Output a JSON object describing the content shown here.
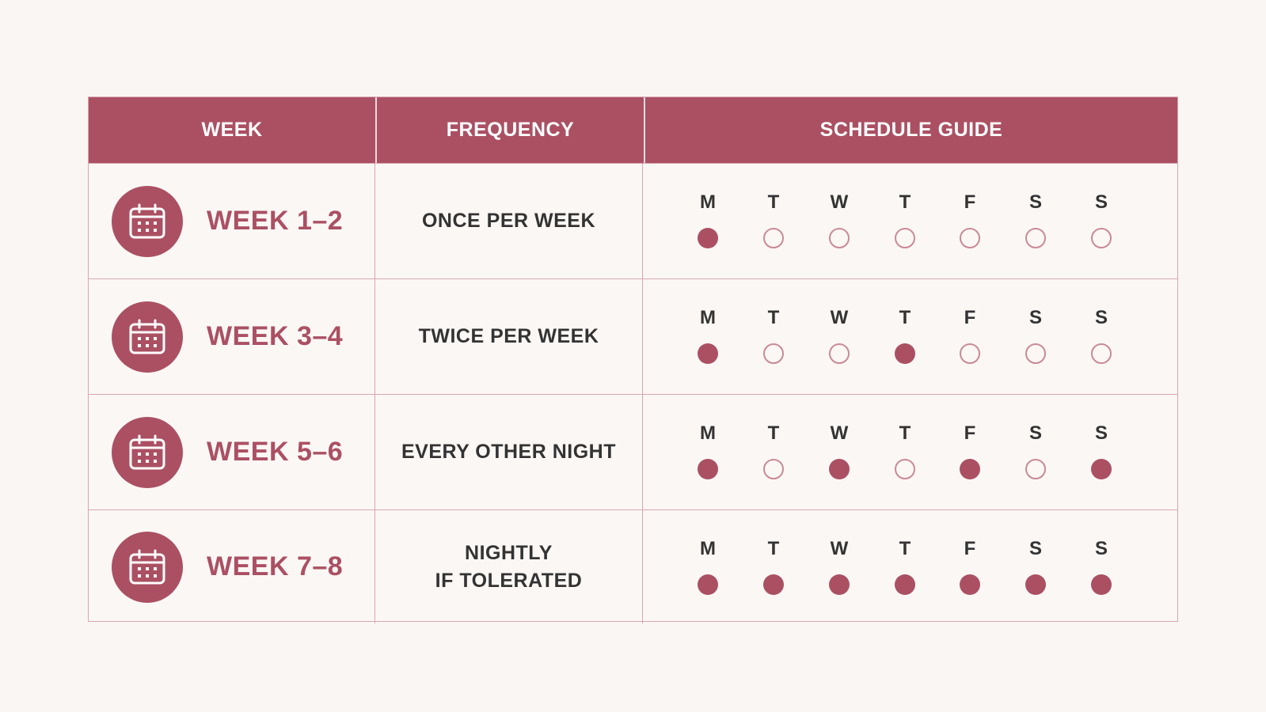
{
  "colors": {
    "accent": "#ab5063",
    "background": "#faf6f4",
    "text": "#333333"
  },
  "header": {
    "week": "WEEK",
    "frequency": "FREQUENCY",
    "schedule": "SCHEDULE GUIDE"
  },
  "day_letters": [
    "M",
    "T",
    "W",
    "T",
    "F",
    "S",
    "S"
  ],
  "rows": [
    {
      "icon": "calendar-icon",
      "week": "WEEK 1–2",
      "frequency": [
        "ONCE PER WEEK"
      ],
      "days": [
        1,
        0,
        0,
        0,
        0,
        0,
        0
      ]
    },
    {
      "icon": "calendar-icon",
      "week": "WEEK 3–4",
      "frequency": [
        "TWICE PER WEEK"
      ],
      "days": [
        1,
        0,
        0,
        1,
        0,
        0,
        0
      ]
    },
    {
      "icon": "calendar-icon",
      "week": "WEEK 5–6",
      "frequency": [
        "EVERY OTHER NIGHT"
      ],
      "days": [
        1,
        0,
        1,
        0,
        1,
        0,
        1
      ]
    },
    {
      "icon": "calendar-icon",
      "week": "WEEK 7–8",
      "frequency": [
        "NIGHTLY",
        "IF TOLERATED"
      ],
      "days": [
        1,
        1,
        1,
        1,
        1,
        1,
        1
      ]
    }
  ]
}
